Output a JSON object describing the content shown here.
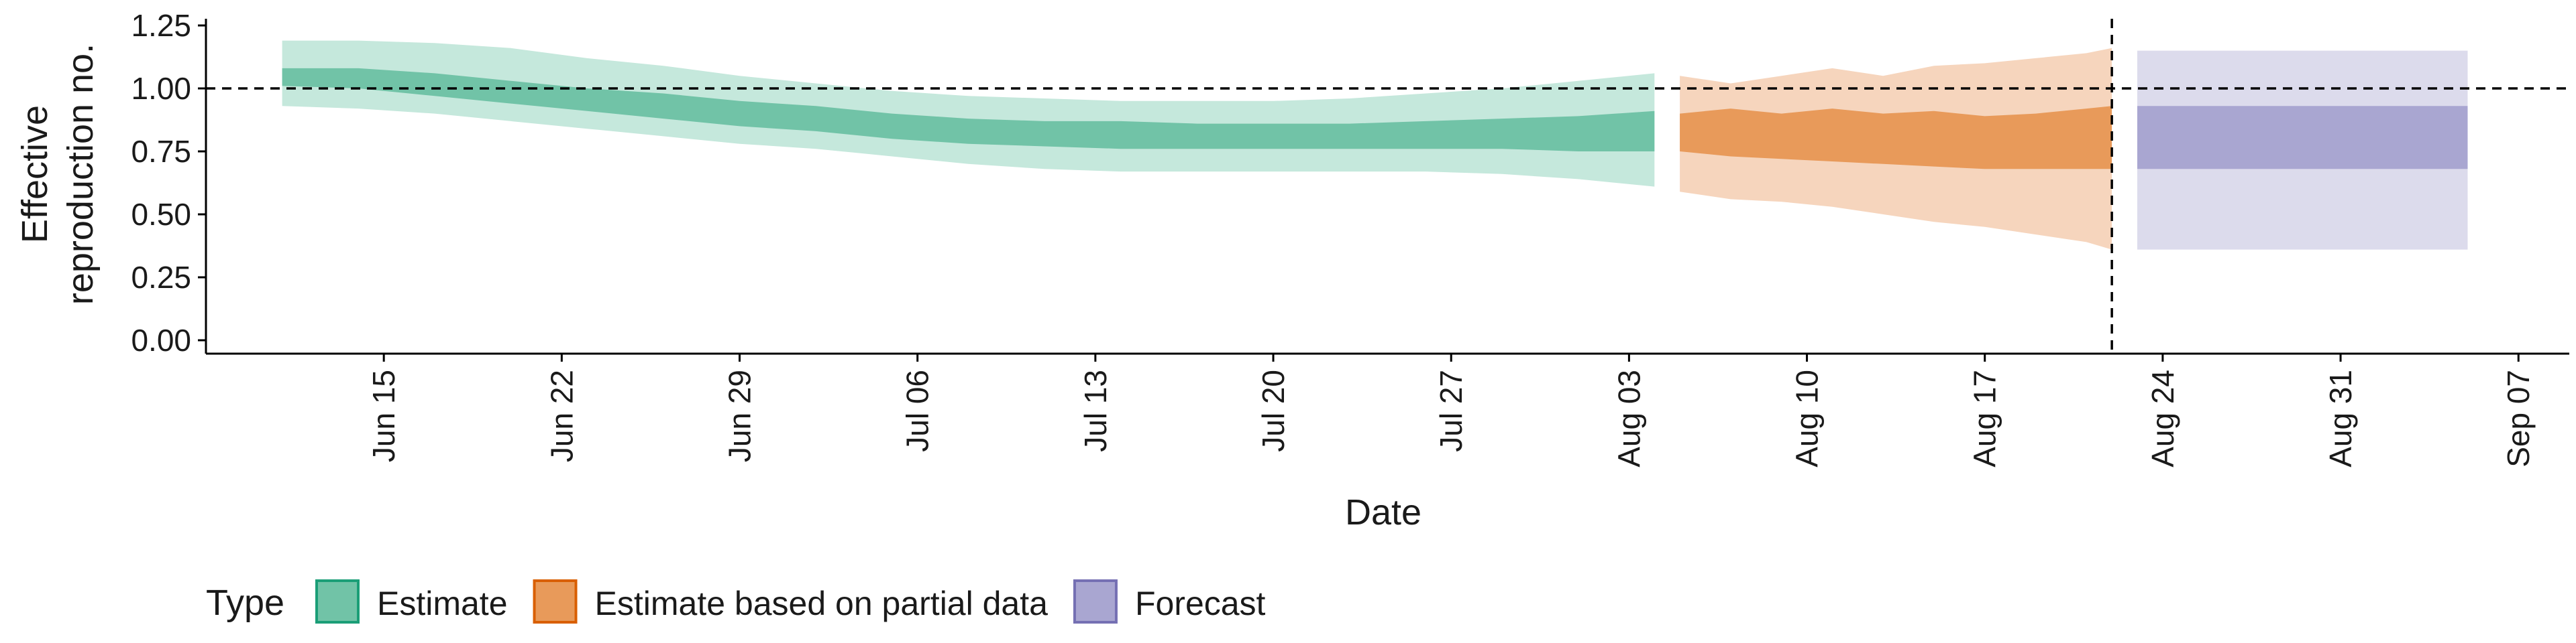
{
  "chart_data": {
    "type": "area",
    "xlabel": "Date",
    "ylabel_lines": [
      "Effective",
      "reproduction no."
    ],
    "ylim": [
      0,
      1.25
    ],
    "y_ticks": [
      "0.00",
      "0.25",
      "0.50",
      "0.75",
      "1.00",
      "1.25"
    ],
    "x_range": [
      "2020-06-08",
      "2020-09-09"
    ],
    "x_ticks": [
      {
        "date": "2020-06-15",
        "label": "Jun 15"
      },
      {
        "date": "2020-06-22",
        "label": "Jun 22"
      },
      {
        "date": "2020-06-29",
        "label": "Jun 29"
      },
      {
        "date": "2020-07-06",
        "label": "Jul 06"
      },
      {
        "date": "2020-07-13",
        "label": "Jul 13"
      },
      {
        "date": "2020-07-20",
        "label": "Jul 20"
      },
      {
        "date": "2020-07-27",
        "label": "Jul 27"
      },
      {
        "date": "2020-08-03",
        "label": "Aug 03"
      },
      {
        "date": "2020-08-10",
        "label": "Aug 10"
      },
      {
        "date": "2020-08-17",
        "label": "Aug 17"
      },
      {
        "date": "2020-08-24",
        "label": "Aug 24"
      },
      {
        "date": "2020-08-31",
        "label": "Aug 31"
      },
      {
        "date": "2020-09-07",
        "label": "Sep 07"
      }
    ],
    "reference_hline": 1.0,
    "reference_vline": "2020-08-22",
    "legend": {
      "title": "Type",
      "position": "bottom",
      "items": [
        {
          "label": "Estimate",
          "fill": "#71c3a7",
          "border": "#1b9e77"
        },
        {
          "label": "Estimate based on partial data",
          "fill": "#e89a5a",
          "border": "#d95f02"
        },
        {
          "label": "Forecast",
          "fill": "#a9a6d1",
          "border": "#7570b3"
        }
      ]
    },
    "series": [
      {
        "name": "Estimate",
        "inner_color": "#71c3a7",
        "outer_color": "#c5e8dc",
        "x": [
          "2020-06-11",
          "2020-06-14",
          "2020-06-17",
          "2020-06-20",
          "2020-06-23",
          "2020-06-26",
          "2020-06-29",
          "2020-07-02",
          "2020-07-05",
          "2020-07-08",
          "2020-07-11",
          "2020-07-14",
          "2020-07-17",
          "2020-07-20",
          "2020-07-23",
          "2020-07-26",
          "2020-07-29",
          "2020-08-01",
          "2020-08-04"
        ],
        "outer_lower": [
          0.93,
          0.92,
          0.9,
          0.87,
          0.84,
          0.81,
          0.78,
          0.76,
          0.73,
          0.7,
          0.68,
          0.67,
          0.67,
          0.67,
          0.67,
          0.67,
          0.66,
          0.64,
          0.61
        ],
        "inner_lower": [
          1.01,
          1.0,
          0.97,
          0.94,
          0.91,
          0.88,
          0.85,
          0.83,
          0.8,
          0.78,
          0.77,
          0.76,
          0.76,
          0.76,
          0.76,
          0.76,
          0.76,
          0.75,
          0.75
        ],
        "inner_upper": [
          1.08,
          1.08,
          1.06,
          1.03,
          1.0,
          0.98,
          0.95,
          0.93,
          0.9,
          0.88,
          0.87,
          0.87,
          0.86,
          0.86,
          0.86,
          0.87,
          0.88,
          0.89,
          0.91
        ],
        "outer_upper": [
          1.19,
          1.19,
          1.18,
          1.16,
          1.12,
          1.09,
          1.05,
          1.02,
          0.99,
          0.97,
          0.96,
          0.95,
          0.95,
          0.95,
          0.96,
          0.98,
          1.0,
          1.03,
          1.06
        ]
      },
      {
        "name": "Estimate based on partial data",
        "inner_color": "#e89a5a",
        "outer_color": "#f6d5bd",
        "x": [
          "2020-08-05",
          "2020-08-07",
          "2020-08-09",
          "2020-08-11",
          "2020-08-13",
          "2020-08-15",
          "2020-08-17",
          "2020-08-19",
          "2020-08-21",
          "2020-08-22"
        ],
        "outer_lower": [
          0.59,
          0.56,
          0.55,
          0.53,
          0.5,
          0.47,
          0.45,
          0.42,
          0.39,
          0.36
        ],
        "inner_lower": [
          0.75,
          0.73,
          0.72,
          0.71,
          0.7,
          0.69,
          0.68,
          0.68,
          0.68,
          0.68
        ],
        "inner_upper": [
          0.9,
          0.92,
          0.9,
          0.92,
          0.9,
          0.91,
          0.89,
          0.9,
          0.92,
          0.93
        ],
        "outer_upper": [
          1.05,
          1.02,
          1.05,
          1.08,
          1.05,
          1.09,
          1.1,
          1.12,
          1.14,
          1.16
        ]
      },
      {
        "name": "Forecast",
        "inner_color": "#a9a6d1",
        "outer_color": "#dcdbec",
        "x": [
          "2020-08-23",
          "2020-09-05"
        ],
        "outer_lower": [
          0.36,
          0.36
        ],
        "inner_lower": [
          0.68,
          0.68
        ],
        "inner_upper": [
          0.93,
          0.93
        ],
        "outer_upper": [
          1.15,
          1.15
        ]
      }
    ]
  }
}
